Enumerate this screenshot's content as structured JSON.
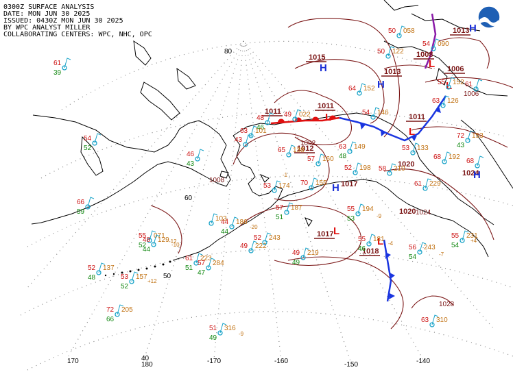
{
  "header": {
    "line1": "0300Z SURFACE ANALYSIS",
    "line2": "DATE: MON JUN 30 2025",
    "line3": "ISSUED: 0430Z MON JUN 30 2025",
    "line4": "BY WPC ANALYST MILLER",
    "line5": "COLLABORATING CENTERS: WPC, NHC, OPC"
  },
  "logo": {
    "name": "NOAA",
    "colors": {
      "blue": "#1e5fb4",
      "white": "#ffffff"
    }
  },
  "colors": {
    "isobar": "#7a1515",
    "high": "#1a2fd6",
    "low": "#e01010",
    "cold_front": "#1a35e0",
    "warm_front": "#e01010",
    "station_temp": "#cc1111",
    "station_dew": "#118811",
    "pressure_text": "#c07010",
    "station_circle": "#19a3c8",
    "grid": "#888888",
    "coast": "#000000"
  },
  "grid_labels": {
    "lat80": "80",
    "lat60": "60",
    "lat50": "50",
    "lat40": "40",
    "lon170": "170",
    "lon180": "180",
    "lonm170": "-170",
    "lonm160": "-160",
    "lonm150": "-150",
    "lonm140": "-140"
  },
  "pressure_centers": [
    {
      "type": "H",
      "value": "1015"
    },
    {
      "type": "H",
      "value": "1011"
    },
    {
      "type": "L",
      "value": "1011"
    },
    {
      "type": "L",
      "value": "1012"
    },
    {
      "type": "H",
      "value": "1017"
    },
    {
      "type": "L",
      "value": "1017"
    },
    {
      "type": "L",
      "value": "1018"
    },
    {
      "type": "L",
      "value": "1013"
    },
    {
      "type": "H",
      "value": "1020"
    },
    {
      "type": "L",
      "value": "1008"
    },
    {
      "type": "L",
      "value": "1006"
    },
    {
      "type": "H",
      "value": "1013"
    },
    {
      "type": "L",
      "value": "1011"
    },
    {
      "type": "H",
      "value": "1024"
    },
    {
      "type": "L",
      "value": "1028"
    }
  ],
  "isobar_labels": [
    "1008",
    "1006",
    "1008",
    "1012",
    "1018",
    "1028",
    "1024",
    "1020",
    "1002"
  ],
  "stations": [
    {
      "t": "61",
      "d": "39",
      "p": ""
    },
    {
      "t": "54",
      "d": "52",
      "p": ""
    },
    {
      "t": "46",
      "d": "43",
      "p": ""
    },
    {
      "t": "66",
      "d": "59",
      "p": ""
    },
    {
      "t": "55",
      "d": "52",
      "p": "071"
    },
    {
      "t": "48",
      "d": "44",
      "p": "129"
    },
    {
      "t": "52",
      "d": "48",
      "p": "137"
    },
    {
      "t": "53",
      "d": "52",
      "p": "157"
    },
    {
      "t": "72",
      "d": "66",
      "p": "205"
    },
    {
      "t": "61",
      "d": "51",
      "p": "223"
    },
    {
      "t": "57",
      "d": "47",
      "p": "284"
    },
    {
      "t": "51",
      "d": "49",
      "p": "316"
    },
    {
      "t": "44",
      "d": "44",
      "p": "186"
    },
    {
      "t": "",
      "d": "",
      "p": "103"
    },
    {
      "t": "49",
      "d": "",
      "p": "222"
    },
    {
      "t": "52",
      "d": "",
      "p": "243"
    },
    {
      "t": "49",
      "d": "49",
      "p": "219"
    },
    {
      "t": "53",
      "d": "",
      "p": "174"
    },
    {
      "t": "57",
      "d": "51",
      "p": "187"
    },
    {
      "t": "70",
      "d": "",
      "p": "155"
    },
    {
      "t": "57",
      "d": "",
      "p": "160"
    },
    {
      "t": "65",
      "d": "",
      "p": "138"
    },
    {
      "t": "63",
      "d": "48",
      "p": "149"
    },
    {
      "t": "52",
      "d": "",
      "p": "198"
    },
    {
      "t": "55",
      "d": "53",
      "p": "194"
    },
    {
      "t": "55",
      "d": "46",
      "p": "181"
    },
    {
      "t": "56",
      "d": "54",
      "p": "243"
    },
    {
      "t": "55",
      "d": "54",
      "p": "231"
    },
    {
      "t": "61",
      "d": "",
      "p": "229"
    },
    {
      "t": "63",
      "d": "",
      "p": "310"
    },
    {
      "t": "68",
      "d": "",
      "p": "192"
    },
    {
      "t": "72",
      "d": "43",
      "p": "153"
    },
    {
      "t": "53",
      "d": "",
      "p": "133"
    },
    {
      "t": "58",
      "d": "",
      "p": "210"
    },
    {
      "t": "54",
      "d": "",
      "p": "146"
    },
    {
      "t": "64",
      "d": "",
      "p": "152"
    },
    {
      "t": "50",
      "d": "",
      "p": "122"
    },
    {
      "t": "48",
      "d": "46",
      "p": ""
    },
    {
      "t": "63",
      "d": "",
      "p": "101"
    },
    {
      "t": "43",
      "d": "",
      "p": ""
    },
    {
      "t": "49",
      "d": "",
      "p": "022"
    },
    {
      "t": "50",
      "d": "",
      "p": "058"
    },
    {
      "t": "54",
      "d": "",
      "p": "090"
    },
    {
      "t": "55",
      "d": "",
      "p": "152"
    },
    {
      "t": "63",
      "d": "",
      "p": "126"
    },
    {
      "t": "68",
      "d": "",
      "p": ""
    },
    {
      "t": "61",
      "d": "",
      "p": ""
    }
  ],
  "tendencies": [
    "-20",
    "-12",
    "-10",
    "+12",
    "-9",
    "-9",
    "-1",
    "-4",
    "-7",
    "+4"
  ]
}
